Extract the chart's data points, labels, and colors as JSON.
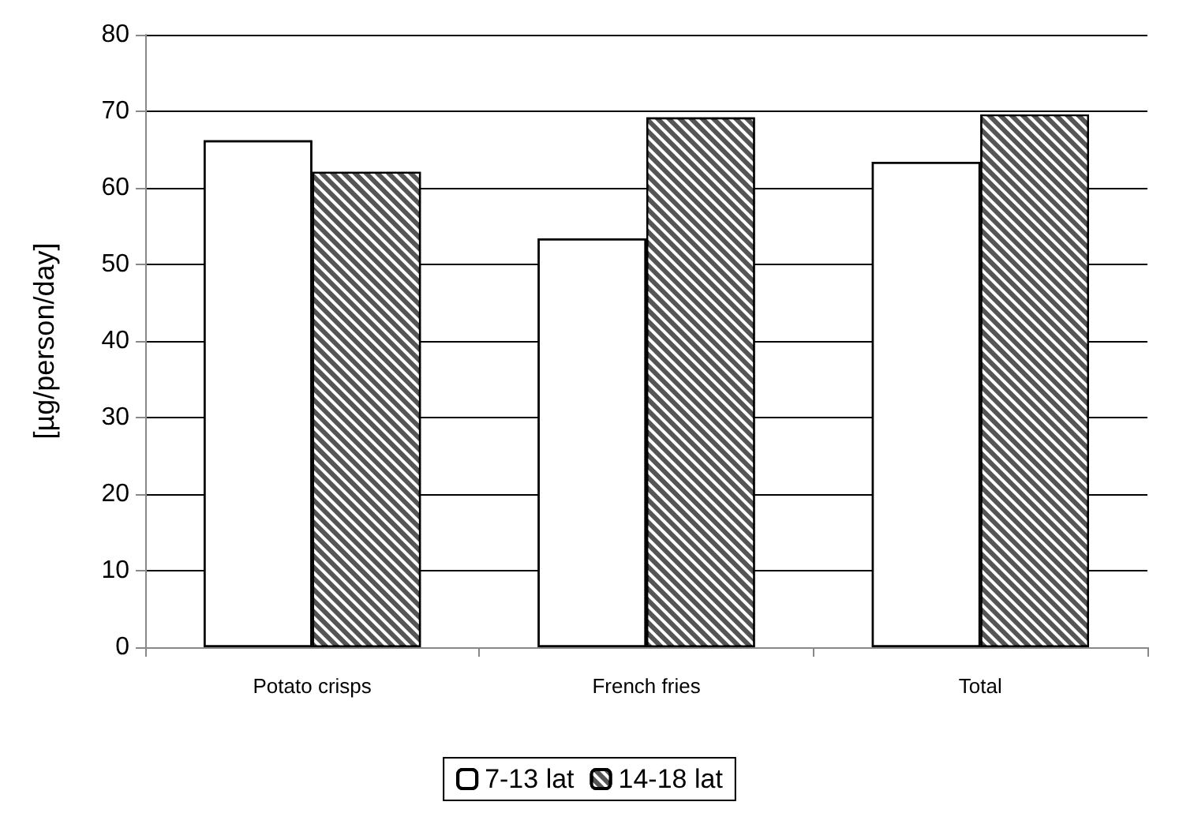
{
  "chart_data": {
    "type": "bar",
    "ylabel": "[µg/person/day]",
    "categories": [
      "Potato crisps",
      "French fries",
      "Total"
    ],
    "series": [
      {
        "name": "7-13 lat",
        "color": "#ffffff",
        "values": [
          66.2,
          53.4,
          63.4
        ]
      },
      {
        "name": "14-18 lat",
        "color": "#555555",
        "values": [
          62.1,
          69.2,
          69.6
        ]
      }
    ],
    "ylim": [
      0,
      80
    ],
    "yticks": [
      0,
      10,
      20,
      30,
      40,
      50,
      60,
      70,
      80
    ],
    "grid": "y",
    "legend": "bottom"
  }
}
